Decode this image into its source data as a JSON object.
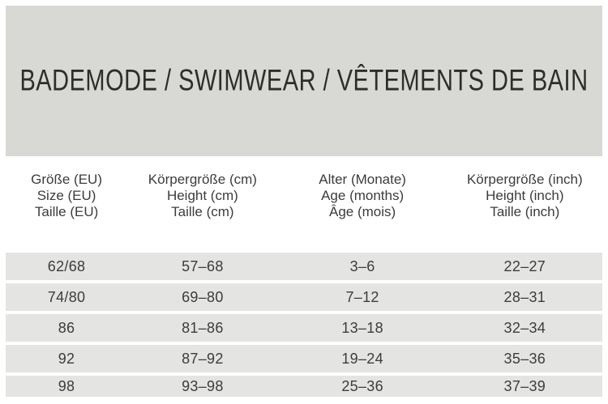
{
  "banner": {
    "title": "BADEMODE / SWIMWEAR / VÊTEMENTS DE BAIN"
  },
  "table": {
    "columns": [
      {
        "id": "size-eu",
        "lines": [
          "Größe (EU)",
          "Size (EU)",
          "Taille (EU)"
        ]
      },
      {
        "id": "height-cm",
        "lines": [
          "Körpergröße (cm)",
          "Height (cm)",
          "Taille (cm)"
        ]
      },
      {
        "id": "age-months",
        "lines": [
          "Alter (Monate)",
          "Age (months)",
          "Âge (mois)"
        ]
      },
      {
        "id": "height-inch",
        "lines": [
          "Körpergröße (inch)",
          "Height (inch)",
          "Taille (inch)"
        ]
      }
    ],
    "rows": [
      [
        "62/68",
        "57–68",
        "3–6",
        "22–27"
      ],
      [
        "74/80",
        "69–80",
        "7–12",
        "28–31"
      ],
      [
        "86",
        "81–86",
        "13–18",
        "32–34"
      ],
      [
        "92",
        "87–92",
        "19–24",
        "35–36"
      ],
      [
        "98",
        "93–98",
        "25–36",
        "37–39"
      ]
    ]
  },
  "colors": {
    "banner_background": "#d8d8d5",
    "row_background": "#e4e4e2",
    "text": "#3c3c3c",
    "title_text": "#2d2d2d",
    "page_background": "#ffffff"
  }
}
